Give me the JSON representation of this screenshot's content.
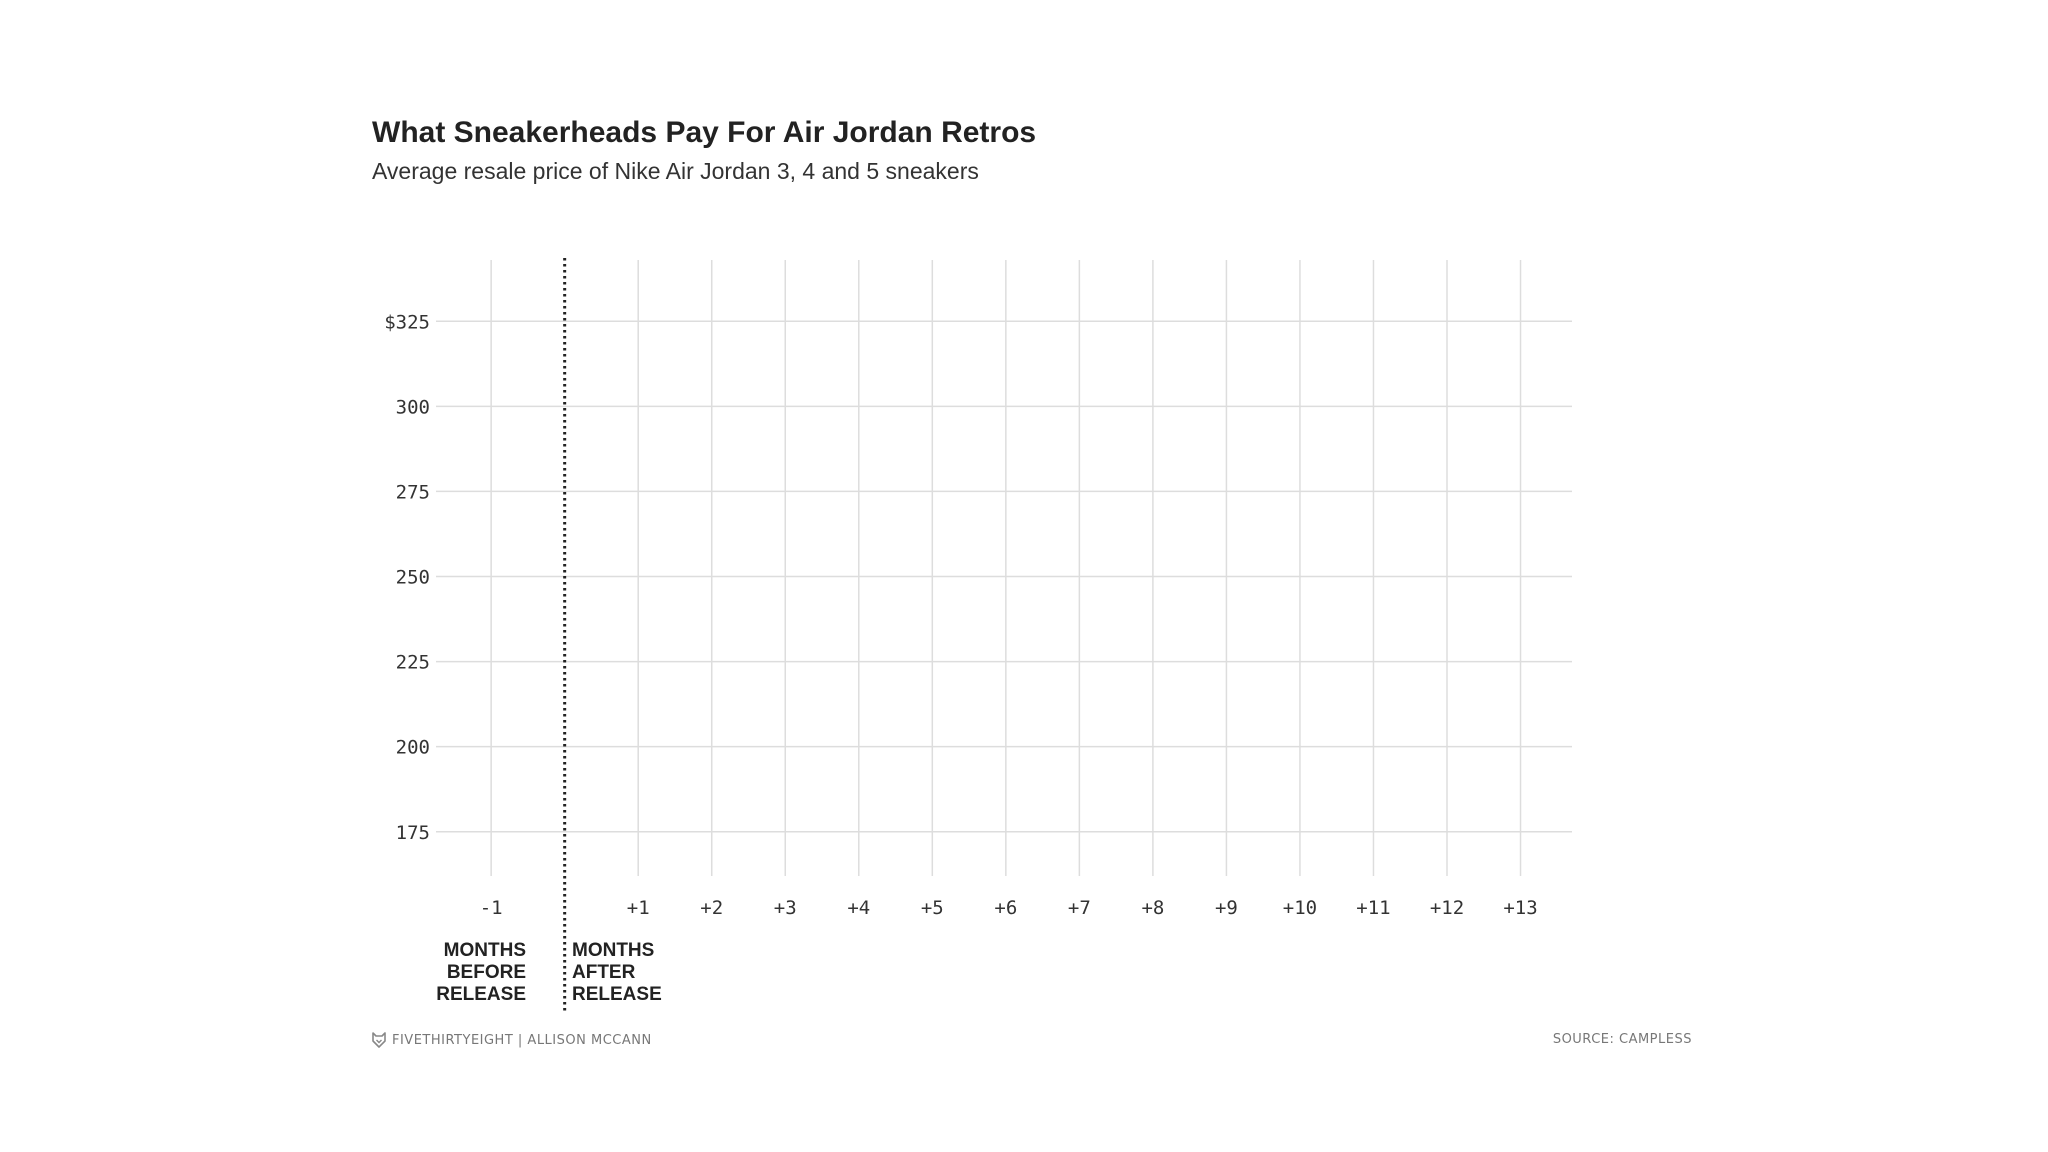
{
  "chart_data": {
    "type": "line",
    "title": "What Sneakerheads Pay For Air Jordan Retros",
    "subtitle": "Average resale price of Nike Air Jordan 3, 4 and 5 sneakers",
    "x_ticks": [
      "-1",
      "+1",
      "+2",
      "+3",
      "+4",
      "+5",
      "+6",
      "+7",
      "+8",
      "+9",
      "+10",
      "+11",
      "+12",
      "+13"
    ],
    "x_tick_values": [
      -1,
      1,
      2,
      3,
      4,
      5,
      6,
      7,
      8,
      9,
      10,
      11,
      12,
      13
    ],
    "xlim": [
      -1.75,
      13.7
    ],
    "y_ticks": [
      "$325",
      "300",
      "275",
      "250",
      "225",
      "200",
      "175"
    ],
    "y_tick_values": [
      325,
      300,
      275,
      250,
      225,
      200,
      175
    ],
    "ylim": [
      162,
      343
    ],
    "release_marker_x": 0,
    "grid": true,
    "series": [],
    "region_labels": {
      "before": [
        "MONTHS",
        "BEFORE",
        "RELEASE"
      ],
      "after": [
        "MONTHS",
        "AFTER",
        "RELEASE"
      ]
    }
  },
  "footer": {
    "credit": "FIVETHIRTYEIGHT | ALLISON MCCANN",
    "source": "SOURCE: CAMPLESS"
  },
  "colors": {
    "grid": "#dddddd",
    "marker": "#222222",
    "text": "#333333"
  }
}
